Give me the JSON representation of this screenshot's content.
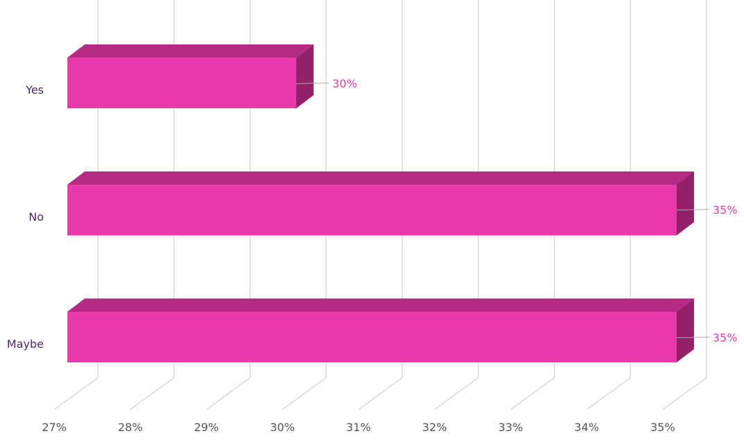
{
  "chart_data": {
    "type": "bar",
    "orientation": "horizontal",
    "style": "3d",
    "categories": [
      "Yes",
      "No",
      "Maybe"
    ],
    "values": [
      30,
      35,
      35
    ],
    "data_labels": [
      "30%",
      "35%",
      "35%"
    ],
    "xlim": [
      27,
      35
    ],
    "x_ticks": [
      "27%",
      "28%",
      "29%",
      "30%",
      "31%",
      "32%",
      "33%",
      "34%",
      "35%"
    ],
    "grid": true,
    "legend": "none",
    "colors": {
      "bar_front": "#e83aab",
      "bar_top": "#b52a85",
      "bar_side": "#942068",
      "grid": "#d9d9d9",
      "data_label": "#e83aab",
      "category_label": "#4a2a6a",
      "tick_label": "#555555"
    }
  }
}
